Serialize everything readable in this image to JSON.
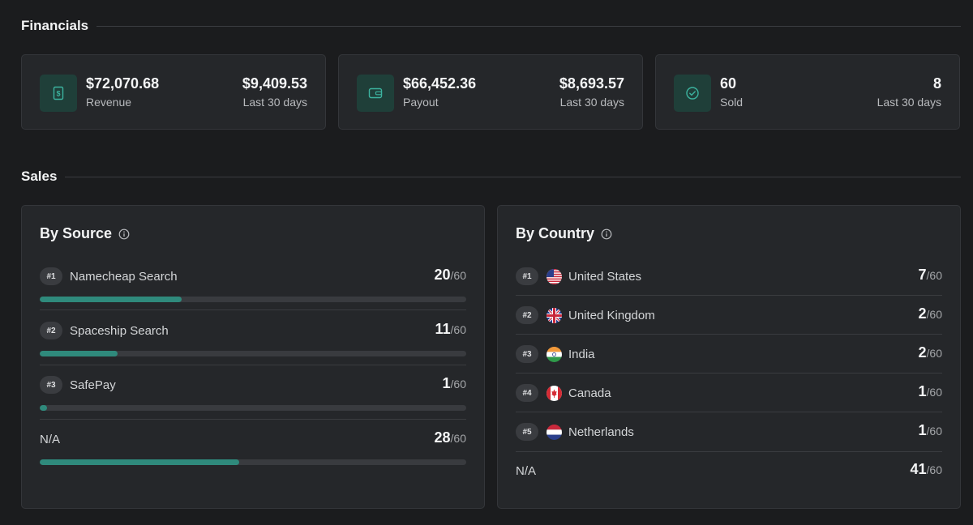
{
  "financials": {
    "title": "Financials",
    "cards": [
      {
        "icon": "dollar-receipt-icon",
        "value": "$72,070.68",
        "label": "Revenue",
        "side_value": "$9,409.53",
        "side_label": "Last 30 days"
      },
      {
        "icon": "wallet-icon",
        "value": "$66,452.36",
        "label": "Payout",
        "side_value": "$8,693.57",
        "side_label": "Last 30 days"
      },
      {
        "icon": "check-circle-icon",
        "value": "60",
        "label": "Sold",
        "side_value": "8",
        "side_label": "Last 30 days"
      }
    ]
  },
  "sales": {
    "title": "Sales",
    "by_source": {
      "title": "By Source",
      "rows": [
        {
          "rank": "#1",
          "label": "Namecheap Search",
          "count": "20",
          "total": "/60",
          "fraction": 0.333
        },
        {
          "rank": "#2",
          "label": "Spaceship Search",
          "count": "11",
          "total": "/60",
          "fraction": 0.183
        },
        {
          "rank": "#3",
          "label": "SafePay",
          "count": "1",
          "total": "/60",
          "fraction": 0.017
        },
        {
          "rank": "",
          "label": "N/A",
          "count": "28",
          "total": "/60",
          "fraction": 0.467
        }
      ]
    },
    "by_country": {
      "title": "By Country",
      "rows": [
        {
          "rank": "#1",
          "flag": "us-flag-icon",
          "label": "United States",
          "count": "7",
          "total": "/60"
        },
        {
          "rank": "#2",
          "flag": "uk-flag-icon",
          "label": "United Kingdom",
          "count": "2",
          "total": "/60"
        },
        {
          "rank": "#3",
          "flag": "india-flag-icon",
          "label": "India",
          "count": "2",
          "total": "/60"
        },
        {
          "rank": "#4",
          "flag": "canada-flag-icon",
          "label": "Canada",
          "count": "1",
          "total": "/60"
        },
        {
          "rank": "#5",
          "flag": "netherlands-flag-icon",
          "label": "Netherlands",
          "count": "1",
          "total": "/60"
        },
        {
          "rank": "",
          "flag": "",
          "label": "N/A",
          "count": "41",
          "total": "/60"
        }
      ]
    }
  },
  "colors": {
    "accent": "#2f8a7c",
    "icon_bg": "#1f3f39",
    "card_bg": "#25272a",
    "page_bg": "#1b1c1e"
  }
}
